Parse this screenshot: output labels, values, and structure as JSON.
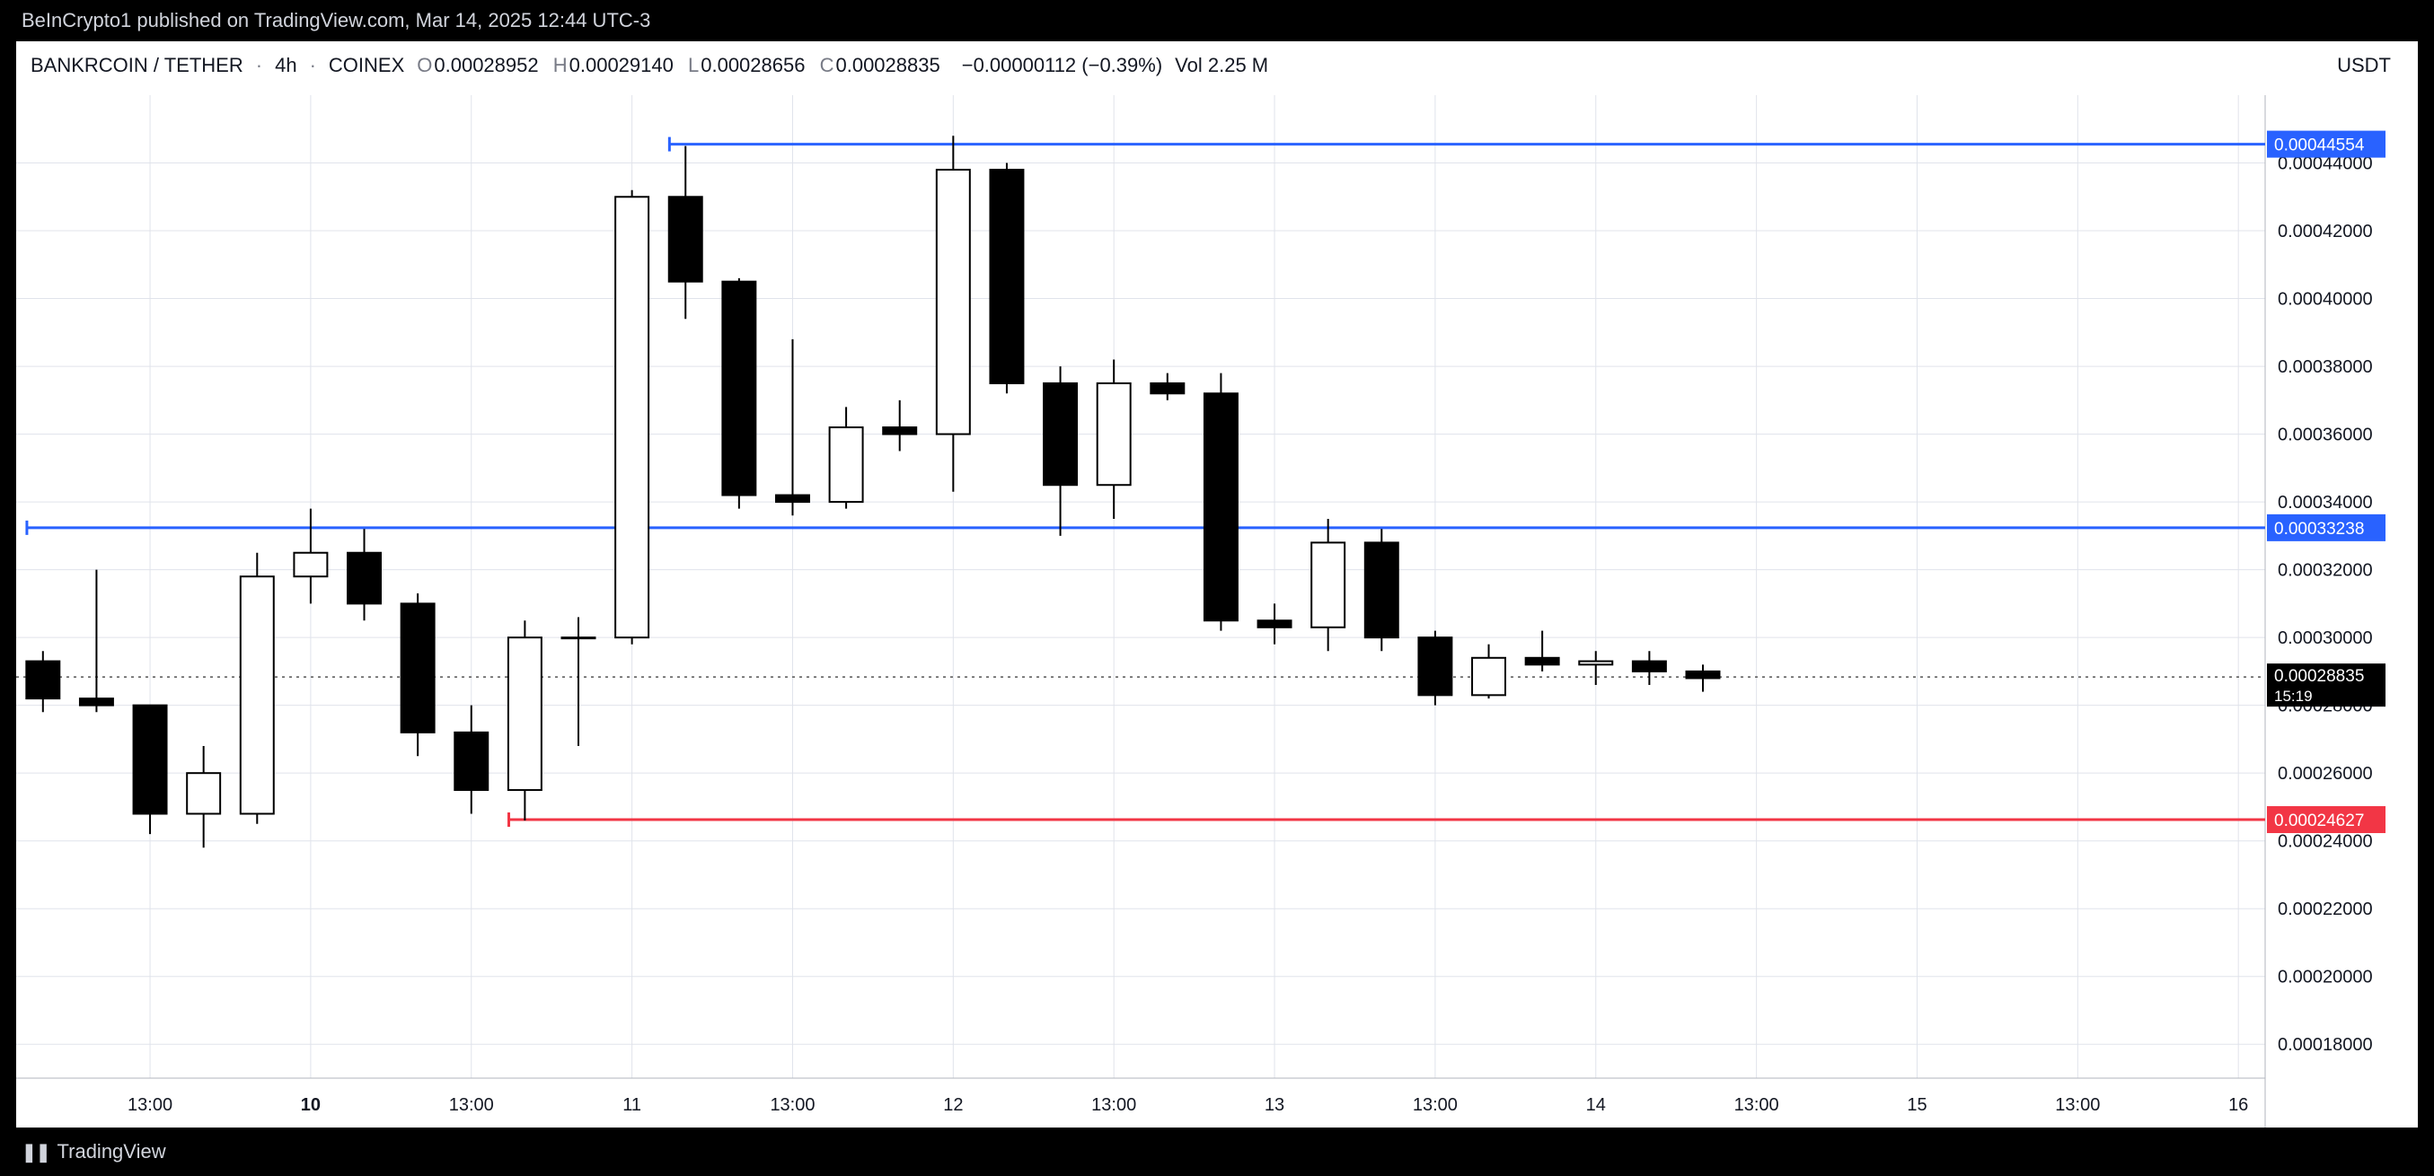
{
  "header": {
    "attribution": "BeInCrypto1 published on TradingView.com, Mar 14, 2025 12:44 UTC-3"
  },
  "legend": {
    "symbol": "BANKRCOIN / TETHER",
    "interval": "4h",
    "exchange": "COINEX",
    "o_label": "O",
    "o": "0.00028952",
    "h_label": "H",
    "h": "0.00029140",
    "l_label": "L",
    "l": "0.00028656",
    "c_label": "C",
    "c": "0.00028835",
    "change": "−0.00000112 (−0.39%)",
    "vol_label": "Vol",
    "vol": "2.25 M",
    "quote": "USDT"
  },
  "footer": {
    "brand_glyph": "❚❚",
    "brand": "TradingView"
  },
  "chart": {
    "type": "candlestick",
    "background_color": "#ffffff",
    "grid_color": "#e0e3eb",
    "axis_text_color": "#131722",
    "axis_fontsize": 20,
    "up_color": "#ffffff",
    "down_color": "#000000",
    "border_color": "#000000",
    "wick_color": "#000000",
    "ylim": [
      0.00017,
      0.00046
    ],
    "y_ticks": [
      {
        "v": 0.00018,
        "label": "0.00018000"
      },
      {
        "v": 0.0002,
        "label": "0.00020000"
      },
      {
        "v": 0.00022,
        "label": "0.00022000"
      },
      {
        "v": 0.00024,
        "label": "0.00024000"
      },
      {
        "v": 0.00026,
        "label": "0.00026000"
      },
      {
        "v": 0.00028,
        "label": "0.00028000"
      },
      {
        "v": 0.0003,
        "label": "0.00030000"
      },
      {
        "v": 0.00032,
        "label": "0.00032000"
      },
      {
        "v": 0.00034,
        "label": "0.00034000"
      },
      {
        "v": 0.00036,
        "label": "0.00036000"
      },
      {
        "v": 0.00038,
        "label": "0.00038000"
      },
      {
        "v": 0.0004,
        "label": "0.00040000"
      },
      {
        "v": 0.00042,
        "label": "0.00042000"
      },
      {
        "v": 0.00044,
        "label": "0.00044000"
      }
    ],
    "x_count": 42,
    "x_ticks": [
      {
        "i": 2,
        "label": "13:00"
      },
      {
        "i": 5,
        "label": "10",
        "bold": true
      },
      {
        "i": 8,
        "label": "13:00"
      },
      {
        "i": 11,
        "label": "11"
      },
      {
        "i": 14,
        "label": "13:00"
      },
      {
        "i": 17,
        "label": "12"
      },
      {
        "i": 20,
        "label": "13:00"
      },
      {
        "i": 23,
        "label": "13"
      },
      {
        "i": 26,
        "label": "13:00"
      },
      {
        "i": 29,
        "label": "14"
      },
      {
        "i": 32,
        "label": "13:00"
      },
      {
        "i": 35,
        "label": "15"
      },
      {
        "i": 38,
        "label": "13:00"
      },
      {
        "i": 41,
        "label": "16"
      }
    ],
    "price_line": {
      "value": 0.00028835,
      "label": "0.00028835",
      "countdown": "15:19",
      "dash_color": "#555555",
      "tag_bg": "#000000",
      "tag_fg": "#ffffff"
    },
    "h_lines": [
      {
        "start_i": 0,
        "value": 0.00033238,
        "color": "#2962ff",
        "label": "0.00033238"
      },
      {
        "start_i": 12,
        "value": 0.00044554,
        "color": "#2962ff",
        "label": "0.00044554"
      },
      {
        "start_i": 9,
        "value": 0.00024627,
        "color": "#f23645",
        "label": "0.00024627"
      }
    ],
    "candles": [
      {
        "i": 0,
        "o": 0.000293,
        "h": 0.000296,
        "l": 0.000278,
        "c": 0.000282
      },
      {
        "i": 1,
        "o": 0.000282,
        "h": 0.00032,
        "l": 0.000278,
        "c": 0.00028
      },
      {
        "i": 2,
        "o": 0.00028,
        "h": 0.00028,
        "l": 0.000242,
        "c": 0.000248
      },
      {
        "i": 3,
        "o": 0.000248,
        "h": 0.000268,
        "l": 0.000238,
        "c": 0.00026
      },
      {
        "i": 4,
        "o": 0.000248,
        "h": 0.000325,
        "l": 0.000245,
        "c": 0.000318
      },
      {
        "i": 5,
        "o": 0.000318,
        "h": 0.000338,
        "l": 0.00031,
        "c": 0.000325
      },
      {
        "i": 6,
        "o": 0.000325,
        "h": 0.000332,
        "l": 0.000305,
        "c": 0.00031
      },
      {
        "i": 7,
        "o": 0.00031,
        "h": 0.000313,
        "l": 0.000265,
        "c": 0.000272
      },
      {
        "i": 8,
        "o": 0.000272,
        "h": 0.00028,
        "l": 0.000248,
        "c": 0.000255
      },
      {
        "i": 9,
        "o": 0.000255,
        "h": 0.000305,
        "l": 0.000246,
        "c": 0.0003
      },
      {
        "i": 10,
        "o": 0.0003,
        "h": 0.000306,
        "l": 0.000268,
        "c": 0.0003
      },
      {
        "i": 11,
        "o": 0.0003,
        "h": 0.000432,
        "l": 0.000298,
        "c": 0.00043
      },
      {
        "i": 12,
        "o": 0.00043,
        "h": 0.000445,
        "l": 0.000394,
        "c": 0.000405
      },
      {
        "i": 13,
        "o": 0.000405,
        "h": 0.000406,
        "l": 0.000338,
        "c": 0.000342
      },
      {
        "i": 14,
        "o": 0.000342,
        "h": 0.000388,
        "l": 0.000336,
        "c": 0.00034
      },
      {
        "i": 15,
        "o": 0.00034,
        "h": 0.000368,
        "l": 0.000338,
        "c": 0.000362
      },
      {
        "i": 16,
        "o": 0.000362,
        "h": 0.00037,
        "l": 0.000355,
        "c": 0.00036
      },
      {
        "i": 17,
        "o": 0.00036,
        "h": 0.000448,
        "l": 0.000343,
        "c": 0.000438
      },
      {
        "i": 18,
        "o": 0.000438,
        "h": 0.00044,
        "l": 0.000372,
        "c": 0.000375
      },
      {
        "i": 19,
        "o": 0.000375,
        "h": 0.00038,
        "l": 0.00033,
        "c": 0.000345
      },
      {
        "i": 20,
        "o": 0.000345,
        "h": 0.000382,
        "l": 0.000335,
        "c": 0.000375
      },
      {
        "i": 21,
        "o": 0.000375,
        "h": 0.000378,
        "l": 0.00037,
        "c": 0.000372
      },
      {
        "i": 22,
        "o": 0.000372,
        "h": 0.000378,
        "l": 0.000302,
        "c": 0.000305
      },
      {
        "i": 23,
        "o": 0.000305,
        "h": 0.00031,
        "l": 0.000298,
        "c": 0.000303
      },
      {
        "i": 24,
        "o": 0.000303,
        "h": 0.000335,
        "l": 0.000296,
        "c": 0.000328
      },
      {
        "i": 25,
        "o": 0.000328,
        "h": 0.000332,
        "l": 0.000296,
        "c": 0.0003
      },
      {
        "i": 26,
        "o": 0.0003,
        "h": 0.000302,
        "l": 0.00028,
        "c": 0.000283
      },
      {
        "i": 27,
        "o": 0.000283,
        "h": 0.000298,
        "l": 0.000282,
        "c": 0.000294
      },
      {
        "i": 28,
        "o": 0.000294,
        "h": 0.000302,
        "l": 0.00029,
        "c": 0.000292
      },
      {
        "i": 29,
        "o": 0.000292,
        "h": 0.000296,
        "l": 0.000286,
        "c": 0.000293
      },
      {
        "i": 30,
        "o": 0.000293,
        "h": 0.000296,
        "l": 0.000286,
        "c": 0.00029
      },
      {
        "i": 31,
        "o": 0.00029,
        "h": 0.000292,
        "l": 0.000284,
        "c": 0.000288
      }
    ]
  }
}
